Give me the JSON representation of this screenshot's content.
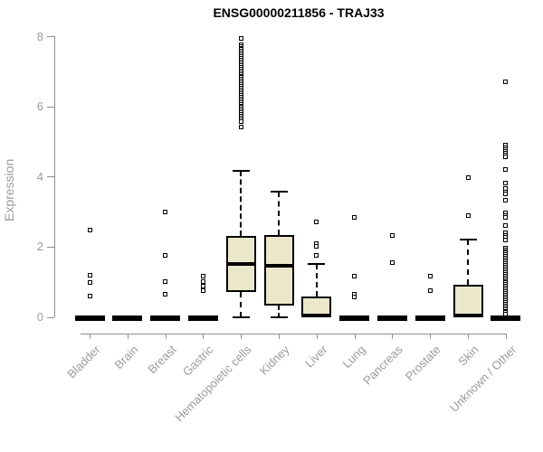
{
  "chart_data": {
    "type": "boxplot",
    "title": "ENSG00000211856 - TRAJ33",
    "xlabel": "",
    "ylabel": "Expression",
    "ylim": [
      0,
      8
    ],
    "yticks": [
      0,
      2,
      4,
      6,
      8
    ],
    "grid": false,
    "legend": "none",
    "categories": [
      "Bladder",
      "Brain",
      "Breast",
      "Gastric",
      "Hematopoietic cells",
      "Kidney",
      "Liver",
      "Lung",
      "Pancreas",
      "Prostate",
      "Skin",
      "Unknown / Other"
    ],
    "colors": {
      "box_fill": "#ebe7cb",
      "box_border": "#000000",
      "median": "#000000",
      "axis": "#8e8e8e",
      "tick_text": "#9b9b9b",
      "title_text": "#000000",
      "outlier": "#000000"
    },
    "series": [
      {
        "name": "Bladder",
        "q1": 0,
        "median": 0,
        "q3": 0,
        "whisker_low": 0,
        "whisker_high": 0,
        "outliers": [
          2.5,
          1.2,
          0.99,
          0.6
        ]
      },
      {
        "name": "Brain",
        "q1": 0,
        "median": 0,
        "q3": 0,
        "whisker_low": 0,
        "whisker_high": 0,
        "outliers": []
      },
      {
        "name": "Breast",
        "q1": 0,
        "median": 0,
        "q3": 0,
        "whisker_low": 0,
        "whisker_high": 0,
        "outliers": [
          2.99,
          1.76,
          1.03,
          0.67
        ]
      },
      {
        "name": "Gastric",
        "q1": 0,
        "median": 0,
        "q3": 0,
        "whisker_low": 0,
        "whisker_high": 0,
        "outliers": [
          1.16,
          1.01,
          0.88,
          0.75
        ]
      },
      {
        "name": "Hematopoietic cells",
        "q1": 0.73,
        "median": 1.53,
        "q3": 2.32,
        "whisker_low": 0,
        "whisker_high": 4.18,
        "outliers": [
          7.95,
          7.78,
          7.73,
          7.68,
          7.63,
          7.58,
          7.53,
          7.48,
          7.43,
          7.38,
          7.33,
          7.28,
          7.23,
          7.18,
          7.13,
          7.08,
          7.03,
          6.98,
          6.93,
          6.88,
          6.83,
          6.78,
          6.73,
          6.68,
          6.63,
          6.58,
          6.53,
          6.48,
          6.43,
          6.38,
          6.33,
          6.28,
          6.23,
          6.18,
          6.13,
          6.08,
          6.03,
          5.98,
          5.93,
          5.88,
          5.83,
          5.78,
          5.73,
          5.68,
          5.63,
          5.58,
          5.42
        ]
      },
      {
        "name": "Kidney",
        "q1": 0.34,
        "median": 1.46,
        "q3": 2.34,
        "whisker_low": 0,
        "whisker_high": 3.57,
        "outliers": []
      },
      {
        "name": "Liver",
        "q1": 0,
        "median": 0.04,
        "q3": 0.6,
        "whisker_low": 0,
        "whisker_high": 1.52,
        "outliers": [
          2.71,
          2.11,
          2.03,
          1.76
        ]
      },
      {
        "name": "Lung",
        "q1": 0,
        "median": 0,
        "q3": 0,
        "whisker_low": 0,
        "whisker_high": 0,
        "outliers": [
          2.84,
          1.16,
          0.65,
          0.57
        ]
      },
      {
        "name": "Pancreas",
        "q1": 0,
        "median": 0,
        "q3": 0,
        "whisker_low": 0,
        "whisker_high": 0,
        "outliers": [
          2.34,
          1.57
        ]
      },
      {
        "name": "Prostate",
        "q1": 0,
        "median": 0,
        "q3": 0,
        "whisker_low": 0,
        "whisker_high": 0,
        "outliers": [
          1.16,
          0.75
        ]
      },
      {
        "name": "Skin",
        "q1": 0,
        "median": 0.04,
        "q3": 0.92,
        "whisker_low": 0,
        "whisker_high": 2.22,
        "outliers": [
          3.97,
          2.9
        ]
      },
      {
        "name": "Unknown / Other",
        "q1": 0,
        "median": 0,
        "q3": 0,
        "whisker_low": 0,
        "whisker_high": 0,
        "outliers": [
          6.71,
          4.9,
          4.84,
          4.79,
          4.73,
          4.68,
          4.62,
          4.57,
          4.21,
          3.83,
          3.66,
          3.58,
          3.52,
          3.35,
          2.97,
          2.91,
          2.84,
          2.62,
          2.41,
          2.34,
          2.27,
          2.2,
          1.98,
          1.93,
          1.88,
          1.83,
          1.78,
          1.73,
          1.68,
          1.63,
          1.58,
          1.53,
          1.48,
          1.43,
          1.38,
          1.33,
          1.28,
          1.23,
          1.18,
          1.13,
          1.08,
          1.03,
          0.98,
          0.93,
          0.88,
          0.83,
          0.78,
          0.73,
          0.68,
          0.63,
          0.58,
          0.53,
          0.48,
          0.43,
          0.38,
          0.33,
          0.28,
          0.23,
          0.18,
          0.13,
          0.08
        ]
      }
    ]
  }
}
